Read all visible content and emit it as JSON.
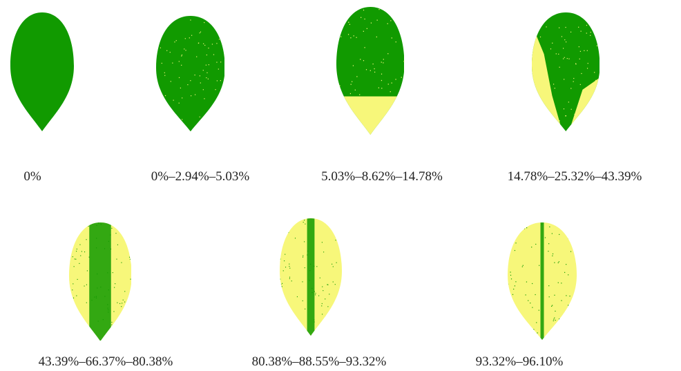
{
  "panels": [
    {
      "label": "0%"
    },
    {
      "label": "0%–2.94%–5.03%"
    },
    {
      "label": "5.03%–8.62%–14.78%"
    },
    {
      "label": "14.78%–25.32%–43.39%"
    },
    {
      "label": "43.39%–66.37%–80.38%"
    },
    {
      "label": "80.38%–88.55%–93.32%"
    },
    {
      "label": "93.32%–96.10%"
    }
  ]
}
